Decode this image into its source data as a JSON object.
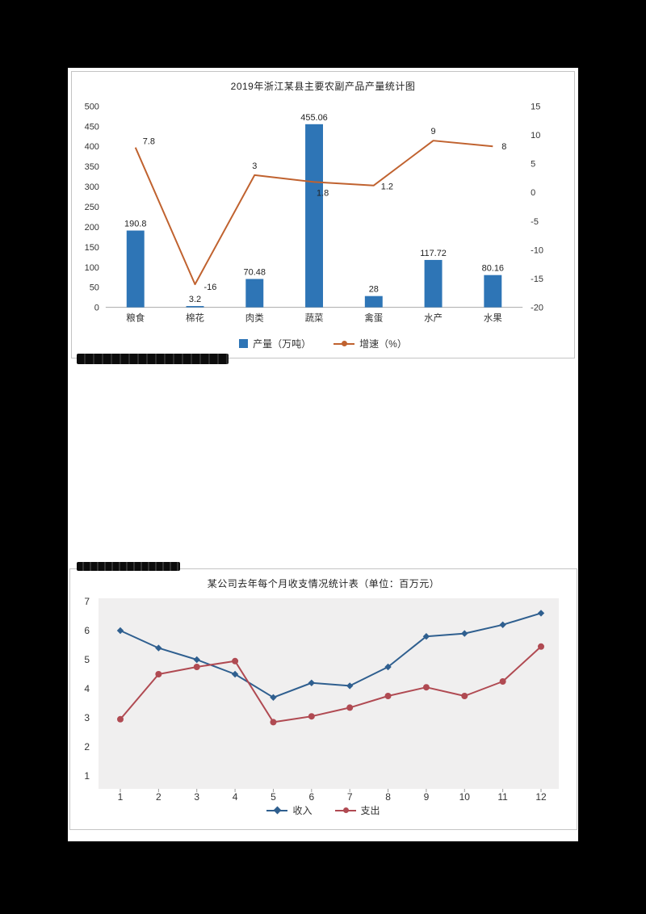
{
  "page": {
    "background_color": "#000000",
    "paper_color": "#ffffff"
  },
  "artifacts": {
    "smudge_below_chart1": "illegible dark text fragment",
    "smudge_above_chart2": "illegible dark text fragment"
  },
  "chart_data": [
    {
      "type": "combo-bar-line",
      "title": "2019年浙江某县主要农副产品产量统计图",
      "categories": [
        "粮食",
        "棉花",
        "肉类",
        "蔬菜",
        "禽蛋",
        "水产",
        "水果"
      ],
      "series": [
        {
          "name": "产量（万吨）",
          "chart_type": "bar",
          "axis": "left",
          "color": "#2e75b6",
          "values": [
            190.8,
            3.2,
            70.48,
            455.06,
            28,
            117.72,
            80.16
          ],
          "labels": [
            "190.8",
            "3.2",
            "70.48",
            "455.06",
            "28",
            "117.72",
            "80.16"
          ]
        },
        {
          "name": "增速（%）",
          "chart_type": "line",
          "axis": "right",
          "color": "#c0622f",
          "values": [
            7.8,
            -16,
            3,
            1.8,
            1.2,
            9,
            8
          ],
          "labels": [
            "7.8",
            "-16",
            "3",
            "1.8",
            "1.2",
            "9",
            "8"
          ]
        }
      ],
      "left_axis": {
        "min": 0,
        "max": 500,
        "step": 50,
        "ticks": [
          0,
          50,
          100,
          150,
          200,
          250,
          300,
          350,
          400,
          450,
          500
        ]
      },
      "right_axis": {
        "min": -20,
        "max": 15,
        "step": 5,
        "ticks": [
          -20,
          -15,
          -10,
          -5,
          0,
          5,
          10,
          15
        ]
      },
      "grid": false,
      "legend_position": "bottom"
    },
    {
      "type": "line",
      "title": "某公司去年每个月收支情况统计表（单位：百万元）",
      "x": [
        1,
        2,
        3,
        4,
        5,
        6,
        7,
        8,
        9,
        10,
        11,
        12
      ],
      "series": [
        {
          "name": "收入",
          "color": "#2f5f8f",
          "marker": "diamond",
          "values": [
            6,
            5.4,
            5,
            4.5,
            3.7,
            4.2,
            4.1,
            4.75,
            5.8,
            5.9,
            6.2,
            6.6
          ]
        },
        {
          "name": "支出",
          "color": "#b04a52",
          "marker": "circle",
          "values": [
            2.95,
            4.5,
            4.75,
            4.95,
            2.85,
            3.05,
            3.35,
            3.75,
            4.05,
            3.75,
            4.25,
            5.45
          ]
        }
      ],
      "y_axis": {
        "min": 1,
        "max": 7,
        "step": 1,
        "ticks": [
          1,
          2,
          3,
          4,
          5,
          6,
          7
        ]
      },
      "plot_background": "#f0efef",
      "grid": false,
      "legend_position": "bottom"
    }
  ]
}
